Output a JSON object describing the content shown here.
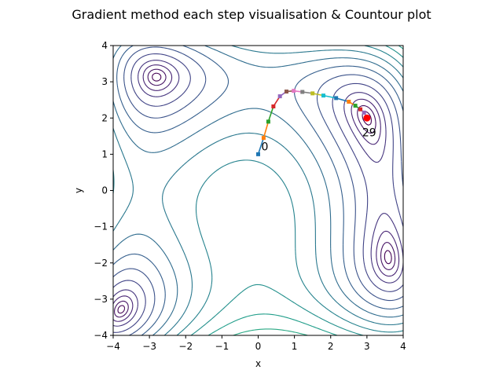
{
  "chart_data": {
    "type": "line",
    "title": "Gradient method each step visualisation & Countour plot",
    "xlabel": "x",
    "ylabel": "y",
    "xlim": [
      -4,
      4
    ],
    "ylim": [
      -4,
      4
    ],
    "xticks": [
      "−4",
      "−3",
      "−2",
      "−1",
      "0",
      "1",
      "2",
      "3",
      "4"
    ],
    "yticks": [
      "−4",
      "−3",
      "−2",
      "−1",
      "0",
      "1",
      "2",
      "3",
      "4"
    ],
    "grid": false,
    "legend": "none",
    "contour": {
      "function": "himmelblau",
      "colormap": "viridis",
      "levels": [
        0.5,
        2,
        5,
        10,
        20,
        35,
        55,
        80,
        110,
        145,
        185,
        230,
        280,
        335,
        395,
        460,
        530,
        610,
        700,
        800,
        910
      ]
    },
    "path": {
      "x": [
        0.0,
        0.15,
        0.28,
        0.42,
        0.6,
        0.78,
        0.98,
        1.22,
        1.5,
        1.8,
        2.15,
        2.5,
        2.68,
        2.82,
        2.92,
        3.0
      ],
      "y": [
        1.0,
        1.45,
        1.9,
        2.32,
        2.6,
        2.73,
        2.75,
        2.72,
        2.68,
        2.62,
        2.55,
        2.45,
        2.34,
        2.24,
        2.15,
        2.0
      ]
    },
    "start_label": "0",
    "end_label": "29",
    "end_marker_color": "#ff0000",
    "segment_colors": [
      "#1f77b4",
      "#ff7f0e",
      "#2ca02c",
      "#d62728",
      "#9467bd",
      "#8c564b",
      "#e377c2",
      "#7f7f7f",
      "#bcbd22",
      "#17becf"
    ]
  }
}
